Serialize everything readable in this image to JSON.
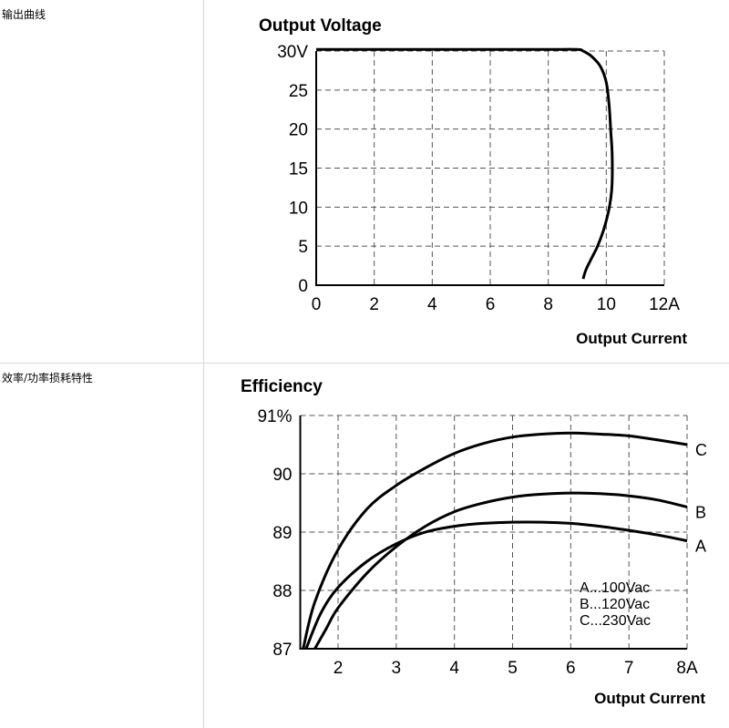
{
  "rows": [
    {
      "label": "输出曲线"
    },
    {
      "label": "效率/功率损耗特性"
    }
  ],
  "chart_data": [
    {
      "type": "line",
      "title": "Output Voltage",
      "xlabel": "Output Current",
      "ylabel": "",
      "xlim": [
        0,
        12
      ],
      "ylim": [
        0,
        30
      ],
      "x_ticks": [
        "0",
        "2",
        "4",
        "6",
        "8",
        "10",
        "12A"
      ],
      "y_ticks": [
        "0",
        "5",
        "10",
        "15",
        "20",
        "25",
        "30V"
      ],
      "grid": true,
      "series": [
        {
          "x": [
            0,
            2,
            4,
            6,
            8,
            9.0,
            9.2,
            9.5,
            9.8,
            10.0,
            10.1,
            10.15,
            10.2,
            10.2,
            10.15,
            10.05,
            9.9,
            9.7,
            9.5,
            9.3,
            9.2
          ],
          "y": [
            30.2,
            30.2,
            30.2,
            30.2,
            30.2,
            30.2,
            30.0,
            29.3,
            28.0,
            26.0,
            23.0,
            20.0,
            17.0,
            13.0,
            11.0,
            9.0,
            7.0,
            5.0,
            3.5,
            2.0,
            0.8
          ]
        }
      ]
    },
    {
      "type": "line",
      "title": "Efficiency",
      "xlabel": "Output Current",
      "ylabel": "",
      "xlim": [
        1.35,
        8
      ],
      "ylim": [
        87,
        91
      ],
      "x_ticks": [
        {
          "v": 2,
          "label": "2"
        },
        {
          "v": 3,
          "label": "3"
        },
        {
          "v": 4,
          "label": "4"
        },
        {
          "v": 5,
          "label": "5"
        },
        {
          "v": 6,
          "label": "6"
        },
        {
          "v": 7,
          "label": "7"
        },
        {
          "v": 8,
          "label": "8A"
        }
      ],
      "y_ticks": [
        {
          "v": 87,
          "label": "87"
        },
        {
          "v": 88,
          "label": "88"
        },
        {
          "v": 89,
          "label": "89"
        },
        {
          "v": 90,
          "label": "90"
        },
        {
          "v": 91,
          "label": "91%"
        }
      ],
      "grid": true,
      "legend_text": [
        "A...100Vac",
        "B...120Vac",
        "C...230Vac"
      ],
      "series": [
        {
          "name": "A",
          "x": [
            1.45,
            1.7,
            2.0,
            2.5,
            3.0,
            3.5,
            4.0,
            4.5,
            5.0,
            5.5,
            6.0,
            6.5,
            7.0,
            7.5,
            8.0
          ],
          "y": [
            87.0,
            87.6,
            88.05,
            88.5,
            88.8,
            89.0,
            89.1,
            89.15,
            89.17,
            89.17,
            89.15,
            89.1,
            89.03,
            88.95,
            88.85
          ]
        },
        {
          "name": "B",
          "x": [
            1.6,
            1.8,
            2.0,
            2.5,
            3.0,
            3.5,
            4.0,
            4.5,
            5.0,
            5.5,
            6.0,
            6.5,
            7.0,
            7.5,
            8.0
          ],
          "y": [
            87.0,
            87.35,
            87.7,
            88.3,
            88.75,
            89.1,
            89.35,
            89.5,
            89.6,
            89.65,
            89.67,
            89.66,
            89.62,
            89.55,
            89.43
          ]
        },
        {
          "name": "C",
          "x": [
            1.4,
            1.6,
            2.0,
            2.5,
            3.0,
            3.5,
            4.0,
            4.5,
            5.0,
            5.5,
            6.0,
            6.5,
            7.0,
            7.5,
            8.0
          ],
          "y": [
            87.0,
            87.8,
            88.7,
            89.4,
            89.8,
            90.1,
            90.35,
            90.52,
            90.63,
            90.68,
            90.7,
            90.68,
            90.65,
            90.58,
            90.5
          ]
        }
      ]
    }
  ]
}
